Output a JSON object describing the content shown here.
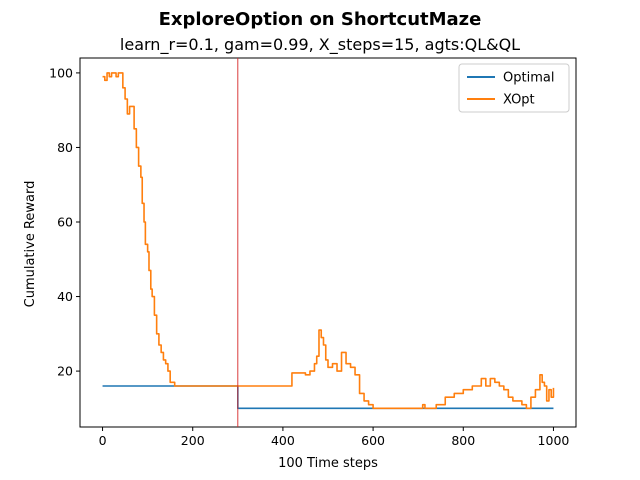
{
  "chart_data": {
    "type": "line",
    "title": "ExploreOption on ShortcutMaze",
    "subtitle": "learn_r=0.1, gam=0.99, X_steps=15, agts:QL&QL",
    "xlabel": "100 Time steps",
    "ylabel": "Cumulative Reward",
    "xlim": [
      -50,
      1050
    ],
    "ylim": [
      5,
      104
    ],
    "xticks": [
      0,
      200,
      400,
      600,
      800,
      1000
    ],
    "yticks": [
      20,
      40,
      60,
      80,
      100
    ],
    "grid": false,
    "legend_position": "upper-right",
    "vline": {
      "x": 300,
      "color": "#d62728"
    },
    "series": [
      {
        "name": "Optimal",
        "color": "#1f77b4",
        "x": [
          0,
          300,
          300,
          1000
        ],
        "y": [
          16,
          16,
          10,
          10
        ]
      },
      {
        "name": "XOpt",
        "color": "#ff7f0e",
        "x": [
          0,
          5,
          10,
          15,
          20,
          25,
          30,
          35,
          40,
          45,
          50,
          55,
          60,
          65,
          70,
          75,
          80,
          85,
          88,
          92,
          95,
          100,
          103,
          107,
          110,
          115,
          120,
          125,
          130,
          135,
          140,
          145,
          150,
          155,
          160,
          300,
          400,
          420,
          430,
          440,
          450,
          460,
          470,
          475,
          480,
          485,
          490,
          495,
          500,
          510,
          520,
          530,
          540,
          550,
          560,
          570,
          580,
          590,
          600,
          650,
          700,
          710,
          715,
          720,
          740,
          760,
          780,
          800,
          820,
          840,
          850,
          860,
          870,
          880,
          890,
          900,
          910,
          920,
          930,
          940,
          950,
          960,
          970,
          975,
          980,
          985,
          990,
          995,
          1000
        ],
        "y": [
          99,
          98,
          100,
          99,
          100,
          100,
          99,
          100,
          100,
          96,
          93,
          89,
          91,
          91,
          85,
          80,
          75,
          72,
          65,
          60,
          54,
          52,
          47,
          42,
          40,
          35,
          30,
          27,
          25,
          23,
          22,
          20,
          17,
          17,
          16,
          16,
          16,
          19.5,
          19.5,
          19.5,
          19,
          20,
          22,
          24,
          31,
          29,
          27,
          23,
          21,
          22,
          20,
          25,
          22,
          21,
          19,
          14,
          12,
          11,
          10,
          10,
          10,
          11,
          10,
          10,
          11,
          13,
          14,
          15,
          16,
          18,
          16,
          18,
          17,
          16,
          15,
          13,
          12,
          12,
          11,
          10,
          13,
          15,
          19,
          17,
          16,
          12,
          15,
          13,
          15.5
        ]
      }
    ]
  }
}
